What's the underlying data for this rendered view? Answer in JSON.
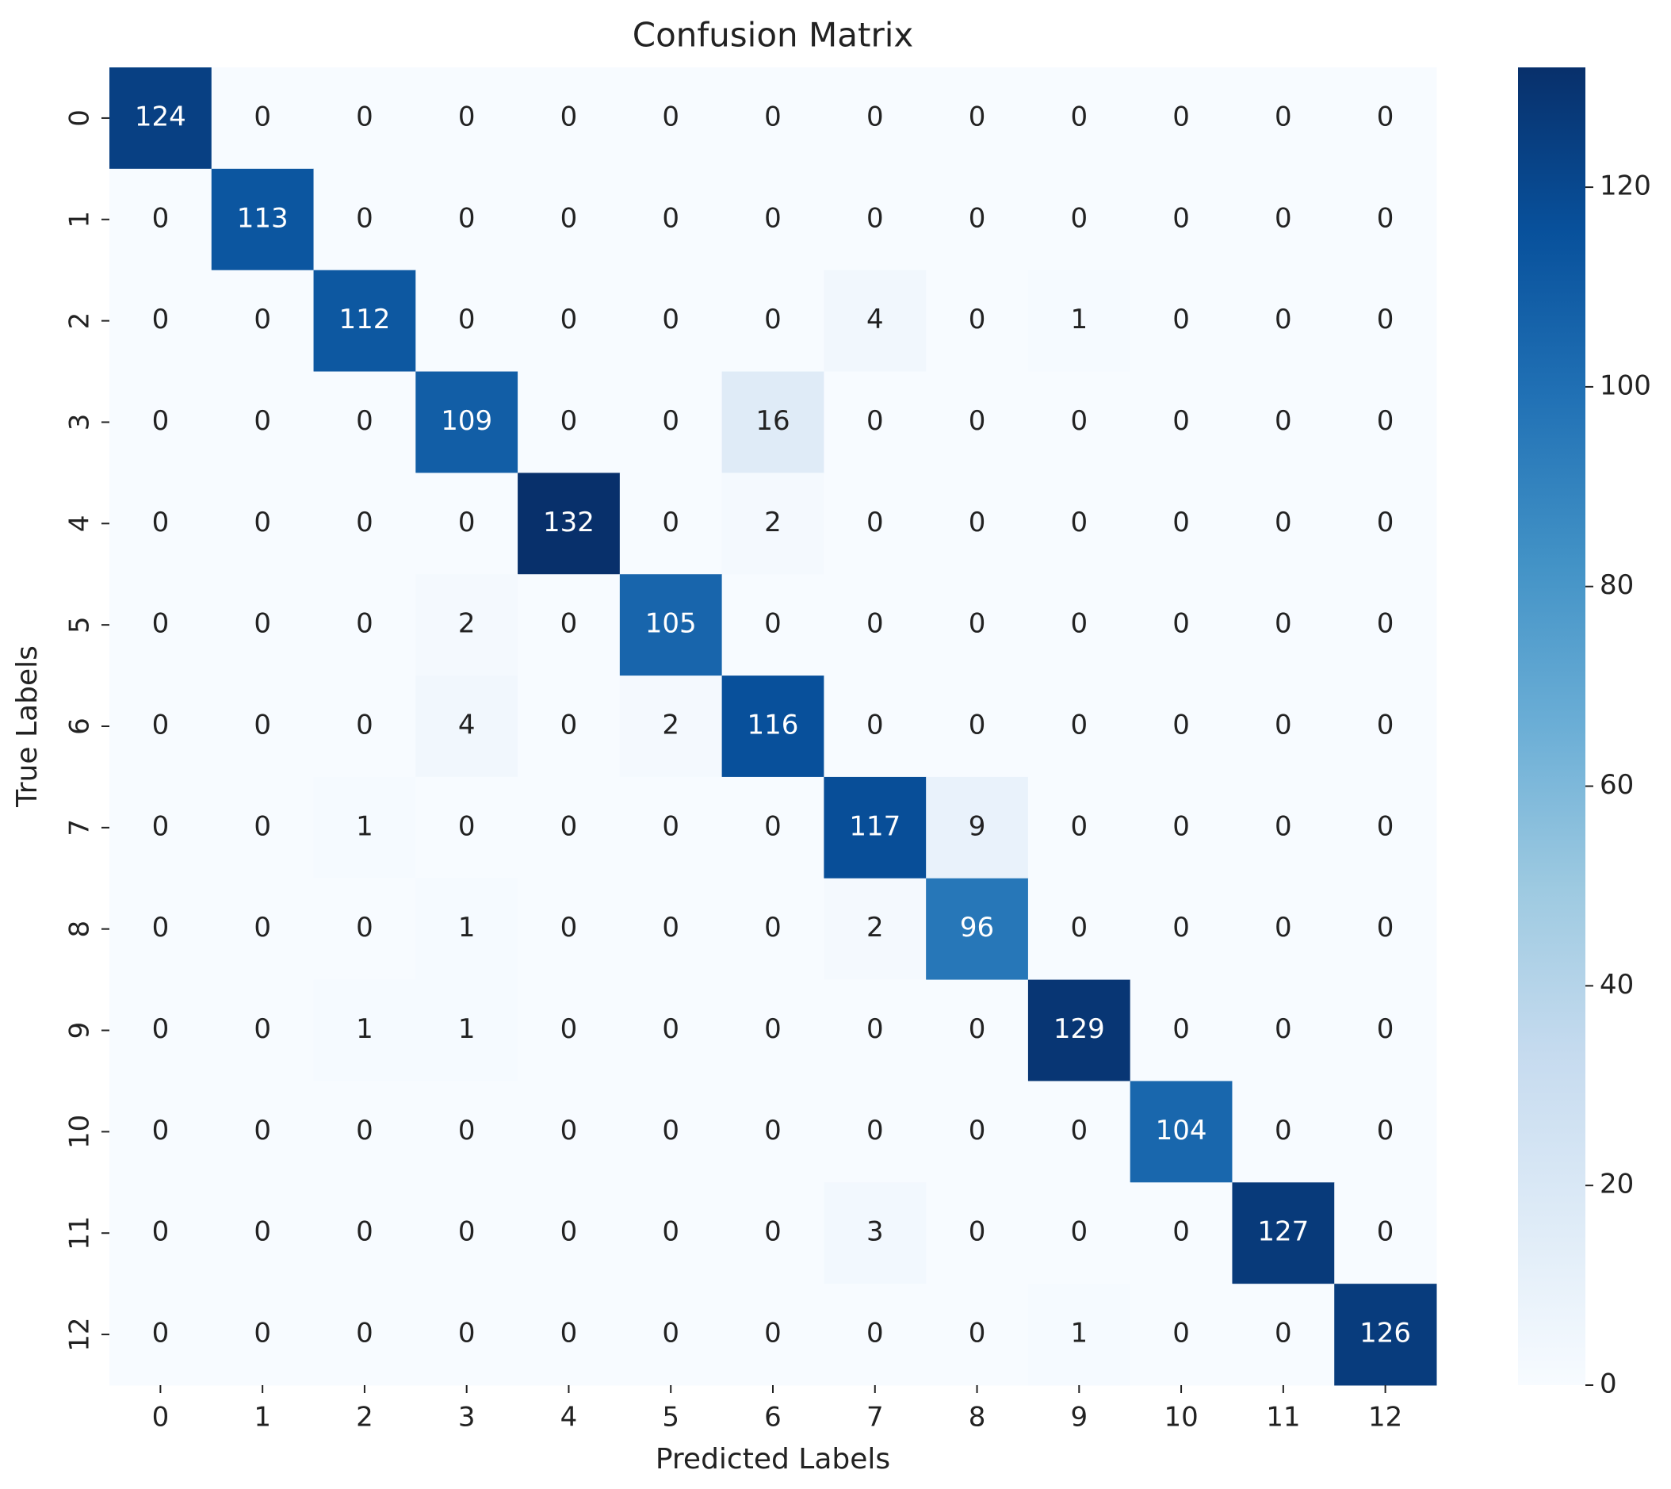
{
  "chart_data": {
    "type": "heatmap",
    "title": "Confusion Matrix",
    "x_label": "Predicted Labels",
    "y_label": "True Labels",
    "x_categories": [
      "0",
      "1",
      "2",
      "3",
      "4",
      "5",
      "6",
      "7",
      "8",
      "9",
      "10",
      "11",
      "12"
    ],
    "y_categories": [
      "0",
      "1",
      "2",
      "3",
      "4",
      "5",
      "6",
      "7",
      "8",
      "9",
      "10",
      "11",
      "12"
    ],
    "values": [
      [
        124,
        0,
        0,
        0,
        0,
        0,
        0,
        0,
        0,
        0,
        0,
        0,
        0
      ],
      [
        0,
        113,
        0,
        0,
        0,
        0,
        0,
        0,
        0,
        0,
        0,
        0,
        0
      ],
      [
        0,
        0,
        112,
        0,
        0,
        0,
        0,
        4,
        0,
        1,
        0,
        0,
        0
      ],
      [
        0,
        0,
        0,
        109,
        0,
        0,
        16,
        0,
        0,
        0,
        0,
        0,
        0
      ],
      [
        0,
        0,
        0,
        0,
        132,
        0,
        2,
        0,
        0,
        0,
        0,
        0,
        0
      ],
      [
        0,
        0,
        0,
        2,
        0,
        105,
        0,
        0,
        0,
        0,
        0,
        0,
        0
      ],
      [
        0,
        0,
        0,
        4,
        0,
        2,
        116,
        0,
        0,
        0,
        0,
        0,
        0
      ],
      [
        0,
        0,
        1,
        0,
        0,
        0,
        0,
        117,
        9,
        0,
        0,
        0,
        0
      ],
      [
        0,
        0,
        0,
        1,
        0,
        0,
        0,
        2,
        96,
        0,
        0,
        0,
        0
      ],
      [
        0,
        0,
        1,
        1,
        0,
        0,
        0,
        0,
        0,
        129,
        0,
        0,
        0
      ],
      [
        0,
        0,
        0,
        0,
        0,
        0,
        0,
        0,
        0,
        0,
        104,
        0,
        0
      ],
      [
        0,
        0,
        0,
        0,
        0,
        0,
        0,
        3,
        0,
        0,
        0,
        127,
        0
      ],
      [
        0,
        0,
        0,
        0,
        0,
        0,
        0,
        0,
        0,
        1,
        0,
        0,
        126
      ]
    ],
    "colormap": [
      "#f7fbff",
      "#deebf7",
      "#c6dbef",
      "#9ecae1",
      "#6baed6",
      "#4292c6",
      "#2171b5",
      "#08519c",
      "#08306b"
    ],
    "clim": [
      0,
      132
    ],
    "cticks": [
      0,
      20,
      40,
      60,
      80,
      100,
      120
    ]
  }
}
